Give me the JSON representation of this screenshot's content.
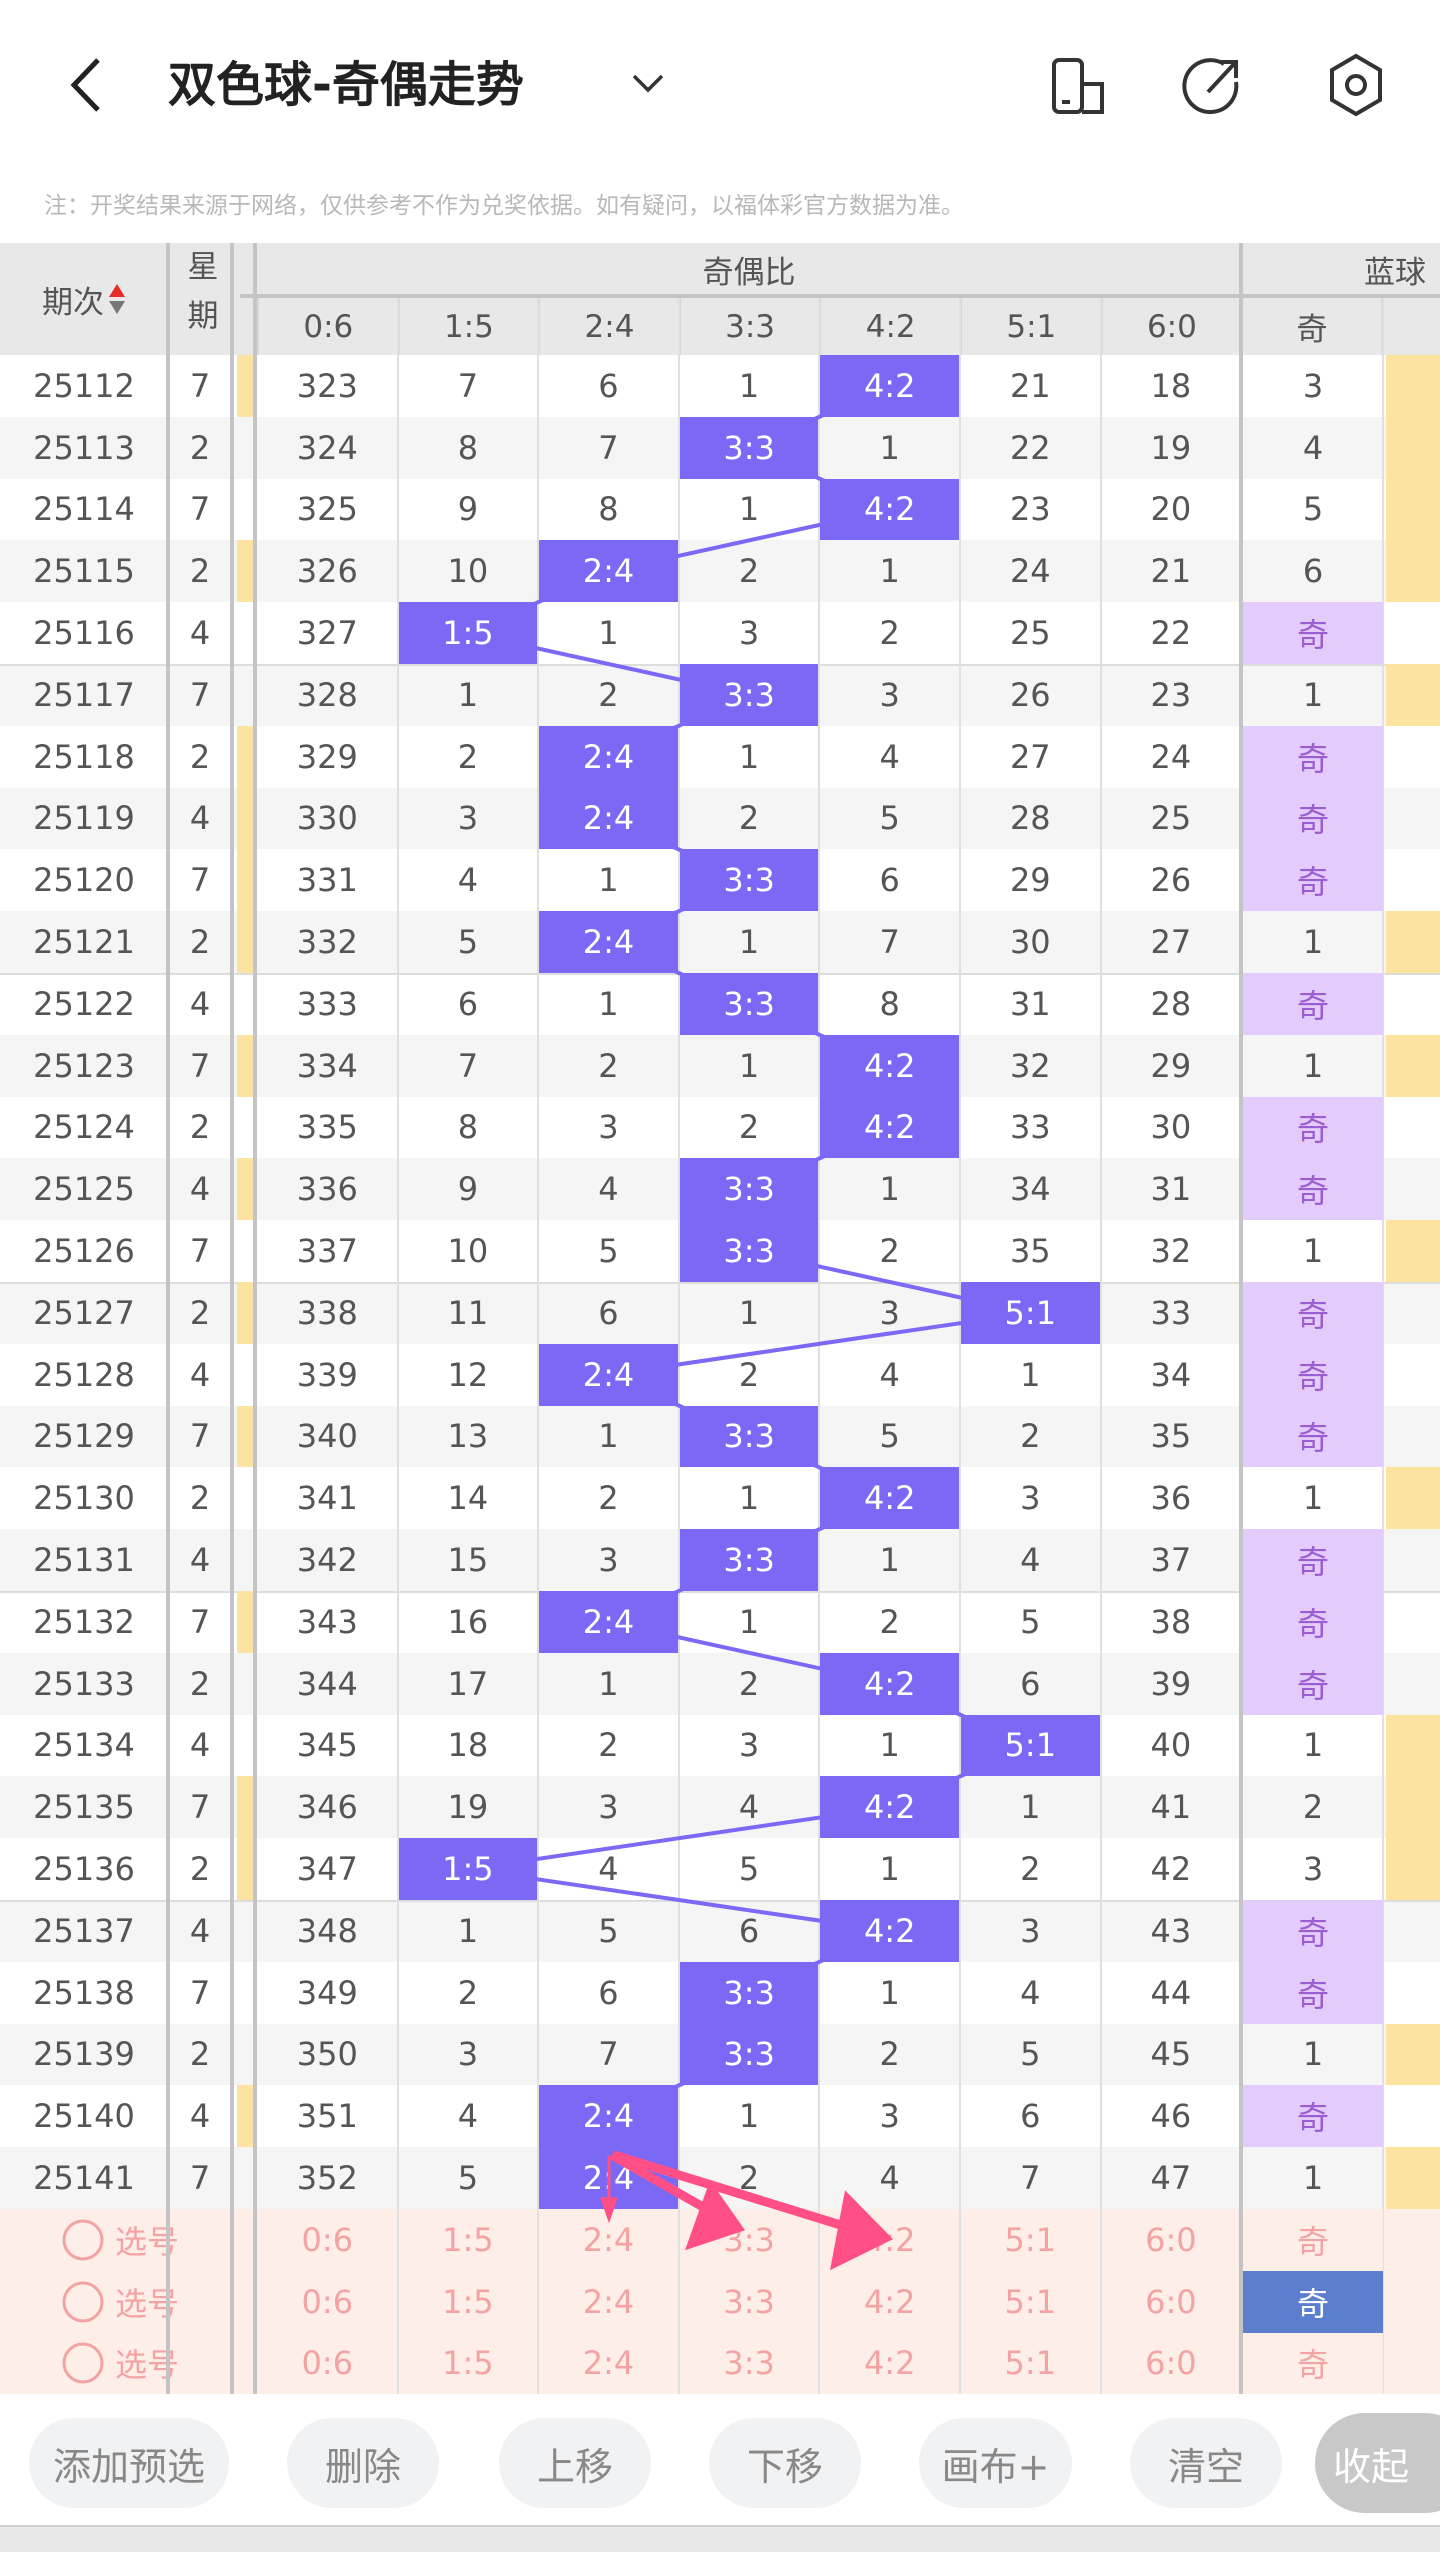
{
  "header": {
    "title": "双色球-奇偶走势",
    "icons": [
      "back-icon",
      "chevron-down-icon",
      "layout-icon",
      "share-icon",
      "settings-icon"
    ]
  },
  "note": "注：开奖结果来源于网络，仅供参考不作为兑奖依据。如有疑问，以福体彩官方数据为准。",
  "table": {
    "col_issue": "期次",
    "col_week": "星期",
    "group_ratio": "奇偶比",
    "group_blue": "蓝球",
    "ratio_cols": [
      "0:6",
      "1:5",
      "2:4",
      "3:3",
      "4:2",
      "5:1",
      "6:0"
    ],
    "blue_col": "奇",
    "rows": [
      {
        "issue": "25112",
        "week": "7",
        "mark": true,
        "vals": [
          "323",
          "7",
          "6",
          "1",
          "4:2",
          "21",
          "18"
        ],
        "hit": 4,
        "blue": "3"
      },
      {
        "issue": "25113",
        "week": "2",
        "mark": false,
        "vals": [
          "324",
          "8",
          "7",
          "3:3",
          "1",
          "22",
          "19"
        ],
        "hit": 3,
        "blue": "4"
      },
      {
        "issue": "25114",
        "week": "7",
        "mark": false,
        "vals": [
          "325",
          "9",
          "8",
          "1",
          "4:2",
          "23",
          "20"
        ],
        "hit": 4,
        "blue": "5"
      },
      {
        "issue": "25115",
        "week": "2",
        "mark": true,
        "vals": [
          "326",
          "10",
          "2:4",
          "2",
          "1",
          "24",
          "21"
        ],
        "hit": 2,
        "blue": "6"
      },
      {
        "issue": "25116",
        "week": "4",
        "mark": false,
        "vals": [
          "327",
          "1:5",
          "1",
          "3",
          "2",
          "25",
          "22"
        ],
        "hit": 1,
        "blue": "奇"
      },
      {
        "issue": "25117",
        "week": "7",
        "mark": false,
        "vals": [
          "328",
          "1",
          "2",
          "3:3",
          "3",
          "26",
          "23"
        ],
        "hit": 3,
        "blue": "1"
      },
      {
        "issue": "25118",
        "week": "2",
        "mark": true,
        "vals": [
          "329",
          "2",
          "2:4",
          "1",
          "4",
          "27",
          "24"
        ],
        "hit": 2,
        "blue": "奇"
      },
      {
        "issue": "25119",
        "week": "4",
        "mark": true,
        "vals": [
          "330",
          "3",
          "2:4",
          "2",
          "5",
          "28",
          "25"
        ],
        "hit": 2,
        "blue": "奇"
      },
      {
        "issue": "25120",
        "week": "7",
        "mark": true,
        "vals": [
          "331",
          "4",
          "1",
          "3:3",
          "6",
          "29",
          "26"
        ],
        "hit": 3,
        "blue": "奇"
      },
      {
        "issue": "25121",
        "week": "2",
        "mark": true,
        "vals": [
          "332",
          "5",
          "2:4",
          "1",
          "7",
          "30",
          "27"
        ],
        "hit": 2,
        "blue": "1"
      },
      {
        "issue": "25122",
        "week": "4",
        "mark": false,
        "vals": [
          "333",
          "6",
          "1",
          "3:3",
          "8",
          "31",
          "28"
        ],
        "hit": 3,
        "blue": "奇"
      },
      {
        "issue": "25123",
        "week": "7",
        "mark": true,
        "vals": [
          "334",
          "7",
          "2",
          "1",
          "4:2",
          "32",
          "29"
        ],
        "hit": 4,
        "blue": "1"
      },
      {
        "issue": "25124",
        "week": "2",
        "mark": false,
        "vals": [
          "335",
          "8",
          "3",
          "2",
          "4:2",
          "33",
          "30"
        ],
        "hit": 4,
        "blue": "奇"
      },
      {
        "issue": "25125",
        "week": "4",
        "mark": true,
        "vals": [
          "336",
          "9",
          "4",
          "3:3",
          "1",
          "34",
          "31"
        ],
        "hit": 3,
        "blue": "奇"
      },
      {
        "issue": "25126",
        "week": "7",
        "mark": false,
        "vals": [
          "337",
          "10",
          "5",
          "3:3",
          "2",
          "35",
          "32"
        ],
        "hit": 3,
        "blue": "1"
      },
      {
        "issue": "25127",
        "week": "2",
        "mark": true,
        "vals": [
          "338",
          "11",
          "6",
          "1",
          "3",
          "5:1",
          "33"
        ],
        "hit": 5,
        "blue": "奇"
      },
      {
        "issue": "25128",
        "week": "4",
        "mark": false,
        "vals": [
          "339",
          "12",
          "2:4",
          "2",
          "4",
          "1",
          "34"
        ],
        "hit": 2,
        "blue": "奇"
      },
      {
        "issue": "25129",
        "week": "7",
        "mark": true,
        "vals": [
          "340",
          "13",
          "1",
          "3:3",
          "5",
          "2",
          "35"
        ],
        "hit": 3,
        "blue": "奇"
      },
      {
        "issue": "25130",
        "week": "2",
        "mark": false,
        "vals": [
          "341",
          "14",
          "2",
          "1",
          "4:2",
          "3",
          "36"
        ],
        "hit": 4,
        "blue": "1"
      },
      {
        "issue": "25131",
        "week": "4",
        "mark": false,
        "vals": [
          "342",
          "15",
          "3",
          "3:3",
          "1",
          "4",
          "37"
        ],
        "hit": 3,
        "blue": "奇"
      },
      {
        "issue": "25132",
        "week": "7",
        "mark": true,
        "vals": [
          "343",
          "16",
          "2:4",
          "1",
          "2",
          "5",
          "38"
        ],
        "hit": 2,
        "blue": "奇"
      },
      {
        "issue": "25133",
        "week": "2",
        "mark": false,
        "vals": [
          "344",
          "17",
          "1",
          "2",
          "4:2",
          "6",
          "39"
        ],
        "hit": 4,
        "blue": "奇"
      },
      {
        "issue": "25134",
        "week": "4",
        "mark": false,
        "vals": [
          "345",
          "18",
          "2",
          "3",
          "1",
          "5:1",
          "40"
        ],
        "hit": 5,
        "blue": "1"
      },
      {
        "issue": "25135",
        "week": "7",
        "mark": true,
        "vals": [
          "346",
          "19",
          "3",
          "4",
          "4:2",
          "1",
          "41"
        ],
        "hit": 4,
        "blue": "2"
      },
      {
        "issue": "25136",
        "week": "2",
        "mark": true,
        "vals": [
          "347",
          "1:5",
          "4",
          "5",
          "1",
          "2",
          "42"
        ],
        "hit": 1,
        "blue": "3"
      },
      {
        "issue": "25137",
        "week": "4",
        "mark": false,
        "vals": [
          "348",
          "1",
          "5",
          "6",
          "4:2",
          "3",
          "43"
        ],
        "hit": 4,
        "blue": "奇"
      },
      {
        "issue": "25138",
        "week": "7",
        "mark": false,
        "vals": [
          "349",
          "2",
          "6",
          "3:3",
          "1",
          "4",
          "44"
        ],
        "hit": 3,
        "blue": "奇"
      },
      {
        "issue": "25139",
        "week": "2",
        "mark": false,
        "vals": [
          "350",
          "3",
          "7",
          "3:3",
          "2",
          "5",
          "45"
        ],
        "hit": 3,
        "blue": "1"
      },
      {
        "issue": "25140",
        "week": "4",
        "mark": true,
        "vals": [
          "351",
          "4",
          "2:4",
          "1",
          "3",
          "6",
          "46"
        ],
        "hit": 2,
        "blue": "奇"
      },
      {
        "issue": "25141",
        "week": "7",
        "mark": false,
        "vals": [
          "352",
          "5",
          "2:4",
          "2",
          "4",
          "7",
          "47"
        ],
        "hit": 2,
        "blue": "1"
      }
    ],
    "pick_rows": [
      {
        "label": "选号",
        "blue": "奇",
        "blue_selected": false
      },
      {
        "label": "选号",
        "blue": "奇",
        "blue_selected": true
      },
      {
        "label": "选号",
        "blue": "奇",
        "blue_selected": false
      }
    ]
  },
  "buttons": [
    "添加预选",
    "删除",
    "上移",
    "下移",
    "画布+",
    "清空",
    "收起"
  ],
  "colors": {
    "hit": "#7b68f5",
    "odd_bg": "#e3ccfb",
    "mark": "#fde3a0",
    "pick_bg": "#fdeee8",
    "arrow": "#ff4f86",
    "blue_selected": "#5b7fce"
  }
}
